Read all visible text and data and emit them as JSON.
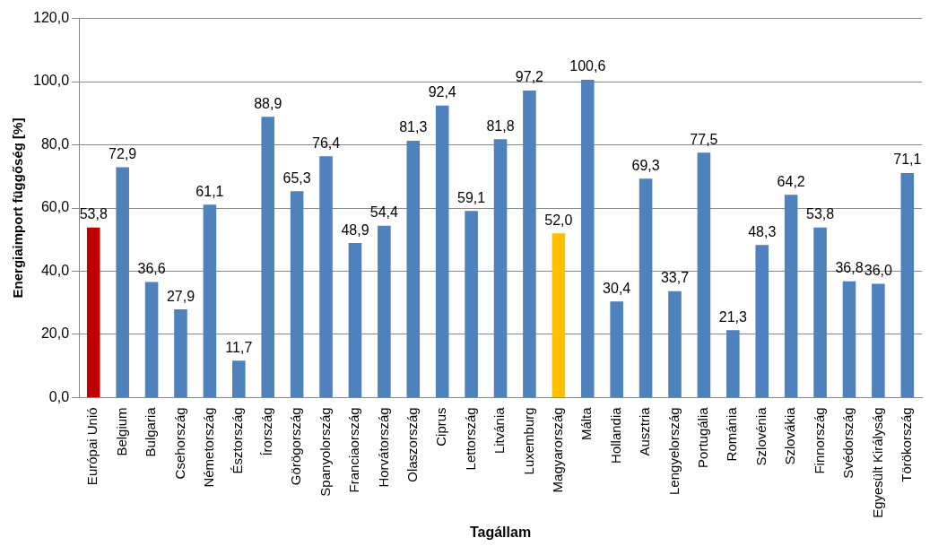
{
  "chart_data": {
    "type": "bar",
    "xlabel": "Tagállam",
    "ylabel": "Energiaimport függőség [%]",
    "categories": [
      "Európai Unió",
      "Belgium",
      "Bulgaria",
      "Csehország",
      "Németország",
      "Észtország",
      "Írország",
      "Görögország",
      "Spanyolország",
      "Franciaország",
      "Horvátország",
      "Olaszország",
      "Ciprus",
      "Lettország",
      "Litvánia",
      "Luxemburg",
      "Magyarország",
      "Málta",
      "Hollandia",
      "Ausztria",
      "Lengyelország",
      "Portugália",
      "Románia",
      "Szlovénia",
      "Szlovákia",
      "Finnország",
      "Svédország",
      "Egyesült Királyság",
      "Törökország"
    ],
    "values": [
      53.8,
      72.9,
      36.6,
      27.9,
      61.1,
      11.7,
      88.9,
      65.3,
      76.4,
      48.9,
      54.4,
      81.3,
      92.4,
      59.1,
      81.8,
      97.2,
      52.0,
      100.6,
      30.4,
      69.3,
      33.7,
      77.5,
      21.3,
      48.3,
      64.2,
      53.8,
      36.8,
      36.0,
      71.1
    ],
    "value_labels": [
      "53,8",
      "72,9",
      "36,6",
      "27,9",
      "61,1",
      "11,7",
      "88,9",
      "65,3",
      "76,4",
      "48,9",
      "54,4",
      "81,3",
      "92,4",
      "59,1",
      "81,8",
      "97,2",
      "52,0",
      "100,6",
      "30,4",
      "69,3",
      "33,7",
      "77,5",
      "21,3",
      "48,3",
      "64,2",
      "53,8",
      "36,8",
      "36,0",
      "71,1"
    ],
    "colors": [
      "#c00000",
      "#4f81bd",
      "#4f81bd",
      "#4f81bd",
      "#4f81bd",
      "#4f81bd",
      "#4f81bd",
      "#4f81bd",
      "#4f81bd",
      "#4f81bd",
      "#4f81bd",
      "#4f81bd",
      "#4f81bd",
      "#4f81bd",
      "#4f81bd",
      "#4f81bd",
      "#ffc000",
      "#4f81bd",
      "#4f81bd",
      "#4f81bd",
      "#4f81bd",
      "#4f81bd",
      "#4f81bd",
      "#4f81bd",
      "#4f81bd",
      "#4f81bd",
      "#4f81bd",
      "#4f81bd",
      "#4f81bd"
    ],
    "ylim": [
      0,
      120
    ],
    "yticks": [
      {
        "value": 0,
        "label": "0,0"
      },
      {
        "value": 20,
        "label": "20,0"
      },
      {
        "value": 40,
        "label": "40,0"
      },
      {
        "value": 60,
        "label": "60,0"
      },
      {
        "value": 80,
        "label": "80,0"
      },
      {
        "value": 100,
        "label": "100,0"
      },
      {
        "value": 120,
        "label": "120,0"
      }
    ],
    "grid": "y",
    "legend": false
  }
}
